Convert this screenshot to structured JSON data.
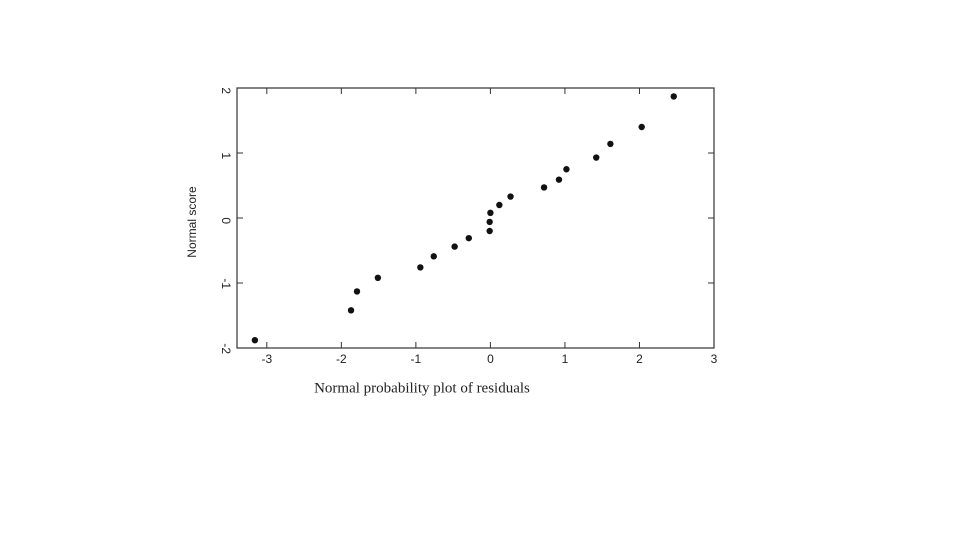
{
  "chart_data": {
    "type": "scatter",
    "x_label": "Normal probability plot of residuals",
    "y_label": "Normal score",
    "x": [
      -3.16,
      -1.87,
      -1.79,
      -1.51,
      -0.94,
      -0.76,
      -0.48,
      -0.29,
      -0.01,
      -0.01,
      0,
      0.12,
      0.27,
      0.72,
      0.92,
      1.02,
      1.42,
      1.61,
      2.03,
      2.46
    ],
    "values": [
      -1.88,
      -1.42,
      -1.13,
      -0.92,
      -0.76,
      -0.59,
      -0.44,
      -0.31,
      -0.2,
      -0.06,
      0.08,
      0.2,
      0.33,
      0.47,
      0.59,
      0.75,
      0.93,
      1.14,
      1.4,
      1.87
    ],
    "color": "#111111",
    "xlim": [
      -3.4,
      3
    ],
    "ylim": [
      -2,
      2
    ],
    "xticks": [
      -3,
      -2,
      -1,
      0,
      1,
      2,
      3
    ],
    "yticks": [
      -2,
      -1,
      0,
      1,
      2
    ]
  }
}
